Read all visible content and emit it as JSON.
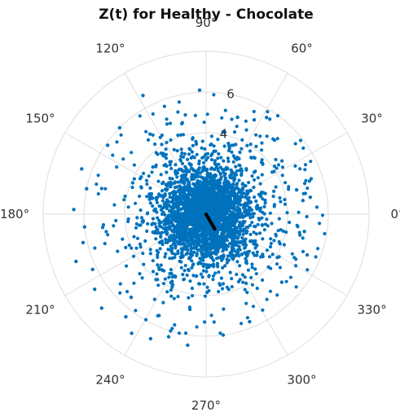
{
  "chart_data": {
    "type": "scatter",
    "projection": "polar",
    "title": "Z(t) for Healthy - Chocolate",
    "xlabel": "",
    "ylabel": "",
    "angular_ticks_deg": [
      0,
      30,
      60,
      90,
      120,
      150,
      180,
      210,
      240,
      270,
      300,
      330
    ],
    "angular_tick_labels": [
      "0°",
      "30°",
      "60°",
      "90°",
      "120°",
      "150°",
      "180°",
      "210°",
      "240°",
      "270°",
      "300°",
      "330°"
    ],
    "radial_ticks": [
      2,
      4,
      6,
      8
    ],
    "radial_tick_labels": [
      "",
      "4",
      "6",
      ""
    ],
    "rlim": [
      0,
      8
    ],
    "grid": true,
    "point_color": "#0072BD",
    "mean_vector_color": "#000000",
    "cloud": {
      "description_count": 3500,
      "center_r": 0.3,
      "core_radius": 2.2,
      "spread_sigma": 1.2
    },
    "mean_vector": {
      "angle_deg": 300,
      "r": 0.85
    },
    "outlier_points": [
      {
        "theta": 58,
        "r": 5.6
      },
      {
        "theta": 63,
        "r": 5.2
      },
      {
        "theta": 72,
        "r": 5.0
      },
      {
        "theta": 93,
        "r": 6.1
      },
      {
        "theta": 118,
        "r": 6.6
      },
      {
        "theta": 135,
        "r": 6.0
      },
      {
        "theta": 145,
        "r": 5.9
      },
      {
        "theta": 160,
        "r": 6.5
      },
      {
        "theta": 168,
        "r": 6.0
      },
      {
        "theta": 178,
        "r": 6.5
      },
      {
        "theta": 186,
        "r": 6.0
      },
      {
        "theta": 193,
        "r": 6.2
      },
      {
        "theta": 200,
        "r": 6.8
      },
      {
        "theta": 206,
        "r": 6.2
      },
      {
        "theta": 214,
        "r": 6.6
      },
      {
        "theta": 222,
        "r": 6.9
      },
      {
        "theta": 232,
        "r": 6.4
      },
      {
        "theta": 238,
        "r": 6.9
      },
      {
        "theta": 246,
        "r": 6.7
      },
      {
        "theta": 253,
        "r": 6.3
      },
      {
        "theta": 262,
        "r": 6.5
      },
      {
        "theta": 278,
        "r": 6.0
      },
      {
        "theta": 292,
        "r": 5.7
      },
      {
        "theta": 318,
        "r": 5.0
      },
      {
        "theta": 8,
        "r": 4.8
      },
      {
        "theta": 15,
        "r": 4.6
      },
      {
        "theta": 350,
        "r": 4.9
      },
      {
        "theta": 125,
        "r": 4.8
      },
      {
        "theta": 105,
        "r": 4.6
      },
      {
        "theta": 228,
        "r": 5.5
      }
    ]
  }
}
